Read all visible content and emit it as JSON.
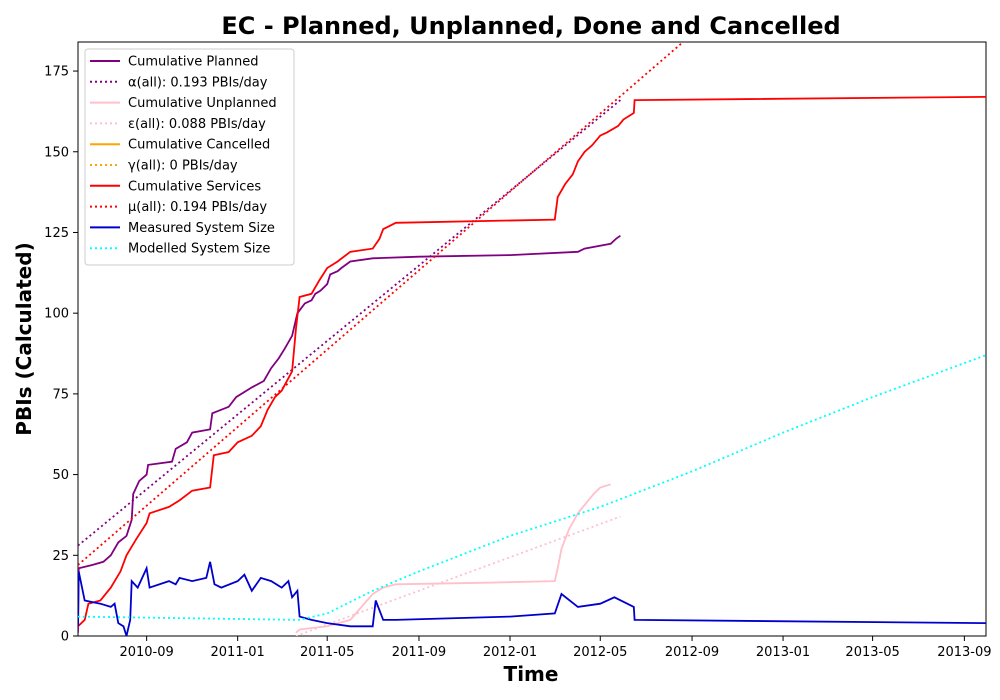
{
  "chart_data": {
    "type": "line",
    "title": "EC - Planned, Unplanned, Done  and Cancelled",
    "xlabel": "Time",
    "ylabel": "PBIs (Calculated)",
    "xlim": [
      "2010-06-01",
      "2013-09-30"
    ],
    "ylim": [
      0,
      184
    ],
    "x_ticks": [
      "2010-09",
      "2011-01",
      "2011-05",
      "2011-09",
      "2012-01",
      "2012-05",
      "2012-09",
      "2013-01",
      "2013-05",
      "2013-09"
    ],
    "y_ticks": [
      0,
      25,
      50,
      75,
      100,
      125,
      150,
      175
    ],
    "grid": false,
    "legend_position": "top-left",
    "series": [
      {
        "name": "Cumulative Planned",
        "color": "#800080",
        "style": "solid",
        "points": [
          [
            "2010-06-01",
            1
          ],
          [
            "2010-06-02",
            21
          ],
          [
            "2010-06-20",
            22
          ],
          [
            "2010-07-05",
            23
          ],
          [
            "2010-07-15",
            25
          ],
          [
            "2010-07-25",
            29
          ],
          [
            "2010-08-05",
            31
          ],
          [
            "2010-08-12",
            36
          ],
          [
            "2010-08-14",
            44
          ],
          [
            "2010-08-22",
            48
          ],
          [
            "2010-09-01",
            50
          ],
          [
            "2010-09-03",
            53
          ],
          [
            "2010-10-05",
            54
          ],
          [
            "2010-10-10",
            58
          ],
          [
            "2010-10-25",
            60
          ],
          [
            "2010-11-01",
            63
          ],
          [
            "2010-11-25",
            64
          ],
          [
            "2010-11-28",
            69
          ],
          [
            "2010-12-20",
            71
          ],
          [
            "2010-12-30",
            74
          ],
          [
            "2011-01-20",
            77
          ],
          [
            "2011-02-05",
            79
          ],
          [
            "2011-02-15",
            83
          ],
          [
            "2011-02-25",
            86
          ],
          [
            "2011-03-05",
            89
          ],
          [
            "2011-03-15",
            93
          ],
          [
            "2011-03-22",
            100
          ],
          [
            "2011-04-01",
            103
          ],
          [
            "2011-04-10",
            104
          ],
          [
            "2011-04-15",
            106
          ],
          [
            "2011-04-22",
            107
          ],
          [
            "2011-05-01",
            109
          ],
          [
            "2011-05-05",
            112
          ],
          [
            "2011-05-15",
            113
          ],
          [
            "2011-05-20",
            114
          ],
          [
            "2011-06-01",
            116
          ],
          [
            "2011-07-01",
            117
          ],
          [
            "2011-09-01",
            117.5
          ],
          [
            "2012-01-01",
            118
          ],
          [
            "2012-04-01",
            119
          ],
          [
            "2012-04-10",
            120
          ],
          [
            "2012-05-15",
            121.5
          ],
          [
            "2012-05-22",
            123
          ],
          [
            "2012-05-28",
            124
          ]
        ]
      },
      {
        "name": "α(all): 0.193 PBIs/day",
        "color": "#800080",
        "style": "dotted",
        "points": [
          [
            "2010-06-01",
            28
          ],
          [
            "2012-05-28",
            166
          ]
        ]
      },
      {
        "name": "Cumulative Unplanned",
        "color": "#ffc0cb",
        "style": "solid",
        "points": [
          [
            "2011-03-20",
            1
          ],
          [
            "2011-03-25",
            2
          ],
          [
            "2011-05-01",
            3
          ],
          [
            "2011-06-01",
            5
          ],
          [
            "2011-07-01",
            13
          ],
          [
            "2011-07-15",
            15
          ],
          [
            "2011-08-01",
            16
          ],
          [
            "2011-12-01",
            16.5
          ],
          [
            "2012-03-01",
            17
          ],
          [
            "2012-03-05",
            21
          ],
          [
            "2012-03-10",
            27
          ],
          [
            "2012-03-20",
            33
          ],
          [
            "2012-04-01",
            38
          ],
          [
            "2012-04-15",
            42
          ],
          [
            "2012-04-22",
            44
          ],
          [
            "2012-05-01",
            46
          ],
          [
            "2012-05-15",
            47
          ]
        ]
      },
      {
        "name": "ε(all): 0.088 PBIs/day",
        "color": "#ffc0cb",
        "style": "dotted",
        "points": [
          [
            "2011-03-20",
            0
          ],
          [
            "2012-05-28",
            37
          ]
        ]
      },
      {
        "name": "Cumulative Cancelled",
        "color": "#ffa500",
        "style": "solid",
        "points": []
      },
      {
        "name": "γ(all): 0 PBIs/day",
        "color": "#ffa500",
        "style": "dotted",
        "points": []
      },
      {
        "name": "Cumulative Services",
        "color": "#ff0000",
        "style": "solid",
        "points": [
          [
            "2010-06-01",
            3
          ],
          [
            "2010-06-10",
            5
          ],
          [
            "2010-06-15",
            10
          ],
          [
            "2010-07-01",
            11
          ],
          [
            "2010-07-15",
            15
          ],
          [
            "2010-07-28",
            20
          ],
          [
            "2010-08-05",
            25
          ],
          [
            "2010-08-18",
            30
          ],
          [
            "2010-09-01",
            35
          ],
          [
            "2010-09-05",
            38
          ],
          [
            "2010-10-01",
            40
          ],
          [
            "2010-10-15",
            42
          ],
          [
            "2010-11-01",
            45
          ],
          [
            "2010-11-25",
            46
          ],
          [
            "2010-11-30",
            56
          ],
          [
            "2010-12-20",
            57
          ],
          [
            "2011-01-01",
            60
          ],
          [
            "2011-01-20",
            62
          ],
          [
            "2011-02-01",
            65
          ],
          [
            "2011-02-10",
            70
          ],
          [
            "2011-02-20",
            74
          ],
          [
            "2011-03-01",
            76
          ],
          [
            "2011-03-15",
            82
          ],
          [
            "2011-03-20",
            95
          ],
          [
            "2011-03-25",
            105
          ],
          [
            "2011-04-10",
            106
          ],
          [
            "2011-04-20",
            110
          ],
          [
            "2011-05-01",
            114
          ],
          [
            "2011-05-15",
            116
          ],
          [
            "2011-06-01",
            119
          ],
          [
            "2011-07-01",
            120
          ],
          [
            "2011-07-10",
            123
          ],
          [
            "2011-07-15",
            126
          ],
          [
            "2011-08-01",
            128
          ],
          [
            "2012-03-01",
            129
          ],
          [
            "2012-03-05",
            136
          ],
          [
            "2012-03-15",
            140
          ],
          [
            "2012-03-25",
            143
          ],
          [
            "2012-04-01",
            147
          ],
          [
            "2012-04-10",
            150
          ],
          [
            "2012-04-20",
            152
          ],
          [
            "2012-05-01",
            155
          ],
          [
            "2012-05-10",
            156
          ],
          [
            "2012-05-25",
            158
          ],
          [
            "2012-06-01",
            160
          ],
          [
            "2012-06-15",
            162
          ],
          [
            "2012-06-16",
            166
          ],
          [
            "2013-09-30",
            167
          ]
        ]
      },
      {
        "name": "μ(all): 0.194 PBIs/day",
        "color": "#ff0000",
        "style": "dotted",
        "points": [
          [
            "2010-06-01",
            22
          ],
          [
            "2012-08-20",
            184
          ]
        ]
      },
      {
        "name": "Measured System Size",
        "color": "#0000cd",
        "style": "solid",
        "points": [
          [
            "2010-06-01",
            3
          ],
          [
            "2010-06-02",
            20
          ],
          [
            "2010-06-10",
            11
          ],
          [
            "2010-07-01",
            10
          ],
          [
            "2010-07-15",
            9
          ],
          [
            "2010-07-20",
            10
          ],
          [
            "2010-07-25",
            4
          ],
          [
            "2010-08-01",
            3
          ],
          [
            "2010-08-05",
            0
          ],
          [
            "2010-08-10",
            5
          ],
          [
            "2010-08-12",
            17
          ],
          [
            "2010-08-20",
            15
          ],
          [
            "2010-09-01",
            21
          ],
          [
            "2010-09-05",
            15
          ],
          [
            "2010-10-01",
            17
          ],
          [
            "2010-10-10",
            16
          ],
          [
            "2010-10-15",
            18
          ],
          [
            "2010-11-01",
            17
          ],
          [
            "2010-11-20",
            18
          ],
          [
            "2010-11-25",
            23
          ],
          [
            "2010-12-01",
            16
          ],
          [
            "2010-12-10",
            15
          ],
          [
            "2011-01-01",
            17
          ],
          [
            "2011-01-10",
            19
          ],
          [
            "2011-01-20",
            14
          ],
          [
            "2011-02-01",
            18
          ],
          [
            "2011-02-15",
            17
          ],
          [
            "2011-03-01",
            15
          ],
          [
            "2011-03-10",
            17
          ],
          [
            "2011-03-15",
            12
          ],
          [
            "2011-03-22",
            14
          ],
          [
            "2011-03-25",
            6
          ],
          [
            "2011-04-10",
            5
          ],
          [
            "2011-05-01",
            4
          ],
          [
            "2011-06-01",
            3
          ],
          [
            "2011-07-01",
            3
          ],
          [
            "2011-07-05",
            11
          ],
          [
            "2011-07-15",
            5
          ],
          [
            "2011-08-01",
            5
          ],
          [
            "2012-01-01",
            6
          ],
          [
            "2012-03-01",
            7
          ],
          [
            "2012-03-10",
            13
          ],
          [
            "2012-04-01",
            9
          ],
          [
            "2012-05-01",
            10
          ],
          [
            "2012-05-20",
            12
          ],
          [
            "2012-06-15",
            9
          ],
          [
            "2012-06-16",
            5
          ],
          [
            "2013-09-30",
            4
          ]
        ]
      },
      {
        "name": "Modelled System Size",
        "color": "#00ffff",
        "style": "dotted",
        "points": [
          [
            "2010-06-01",
            6
          ],
          [
            "2011-03-25",
            5
          ],
          [
            "2011-05-01",
            7
          ],
          [
            "2011-07-01",
            14
          ],
          [
            "2011-09-01",
            20
          ],
          [
            "2012-01-01",
            31
          ],
          [
            "2012-05-01",
            40
          ],
          [
            "2012-09-01",
            51
          ],
          [
            "2013-01-01",
            63
          ],
          [
            "2013-05-01",
            74
          ],
          [
            "2013-09-30",
            87
          ]
        ]
      }
    ]
  }
}
